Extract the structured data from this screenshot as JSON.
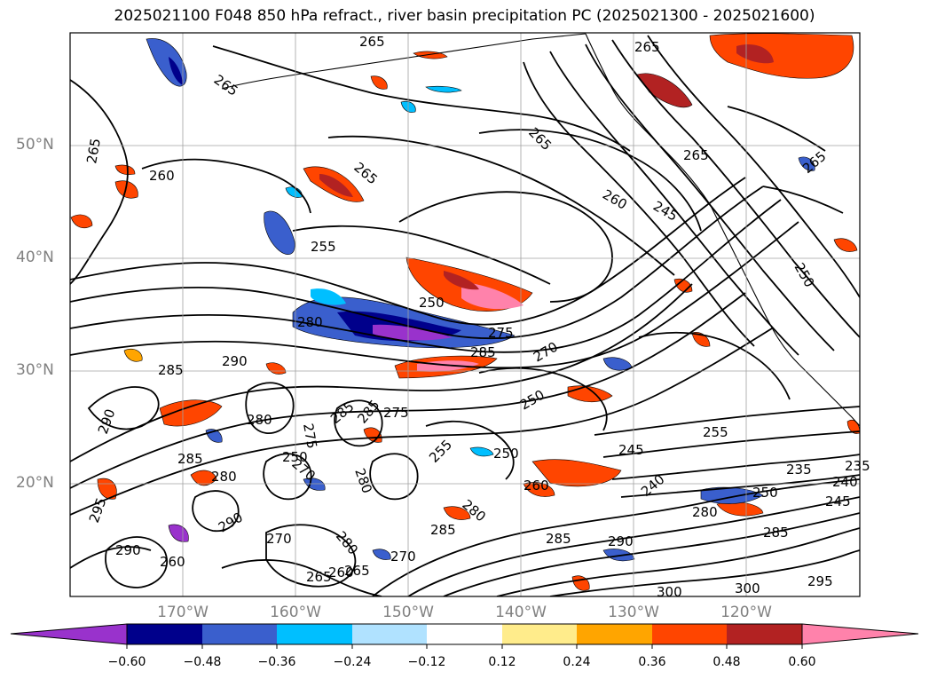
{
  "title": "2025021100 F048 850 hPa refract., river basin precipitation PC (2025021300 - 2025021600)",
  "map": {
    "lat_labels": [
      "50°N",
      "40°N",
      "30°N",
      "20°N"
    ],
    "lon_labels": [
      "170°W",
      "160°W",
      "150°W",
      "140°W",
      "130°W",
      "120°W"
    ],
    "contour_labels": [
      "265",
      "265",
      "265",
      "265",
      "260",
      "265",
      "255",
      "250",
      "280",
      "285",
      "290",
      "285",
      "280",
      "275",
      "285",
      "270",
      "250",
      "255",
      "245",
      "235",
      "240",
      "250",
      "260",
      "250",
      "280",
      "285",
      "290",
      "300",
      "295",
      "280",
      "285",
      "290",
      "265",
      "265",
      "260",
      "245",
      "250",
      "265",
      "270",
      "275",
      "280",
      "285",
      "290",
      "295",
      "300",
      "280",
      "285",
      "290",
      "270",
      "265",
      "260",
      "255",
      "250",
      "245",
      "240",
      "235",
      "285",
      "280",
      "275",
      "270",
      "265",
      "260"
    ],
    "colorbar": {
      "tick_labels": [
        "−0.60",
        "−0.48",
        "−0.36",
        "−0.24",
        "−0.12",
        "0.12",
        "0.24",
        "0.36",
        "0.48",
        "0.60"
      ],
      "colors": [
        "#9932cc",
        "#00008b",
        "#3a5fcd",
        "#00bfff",
        "#b0e2ff",
        "#ffffff",
        "#ffec8b",
        "#ffa500",
        "#ff4500",
        "#b22222",
        "#ff82ab"
      ]
    },
    "fill_colors": {
      "neg_strong": "#9932cc",
      "neg_dark": "#00008b",
      "neg_mid": "#3a5fcd",
      "neg_light": "#00bfff",
      "neg_faint": "#b0e2ff",
      "pos_faint": "#ffec8b",
      "pos_light": "#ffa500",
      "pos_mid": "#ff4500",
      "pos_dark": "#b22222",
      "pos_strong": "#ff82ab"
    }
  }
}
